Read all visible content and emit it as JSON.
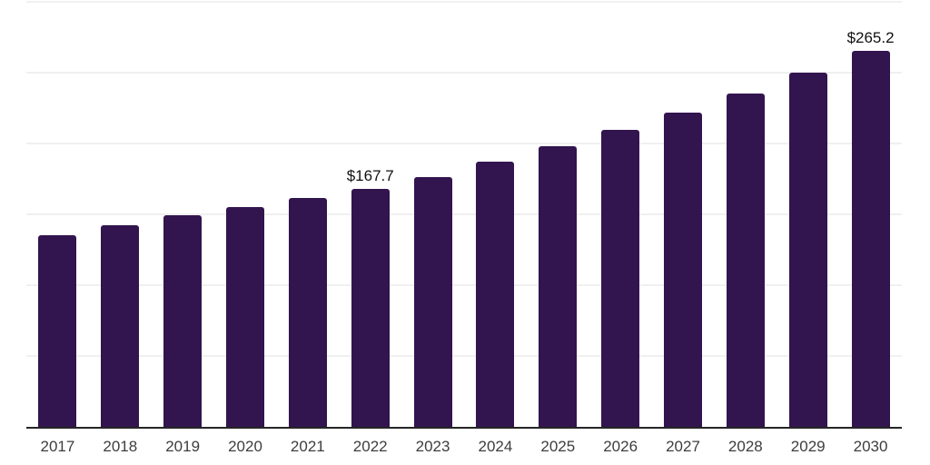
{
  "chart_data": {
    "type": "bar",
    "categories": [
      "2017",
      "2018",
      "2019",
      "2020",
      "2021",
      "2022",
      "2023",
      "2024",
      "2025",
      "2026",
      "2027",
      "2028",
      "2029",
      "2030"
    ],
    "values": [
      135.4,
      142.1,
      149.2,
      155.0,
      161.3,
      167.7,
      176.2,
      187.3,
      198.1,
      209.8,
      221.5,
      235.0,
      249.9,
      265.2
    ],
    "data_labels": [
      {
        "category": "2022",
        "text": "$167.7"
      },
      {
        "category": "2030",
        "text": "$265.2"
      }
    ],
    "ylim": [
      0,
      300
    ],
    "grid_step": 50,
    "grid": true,
    "legend": false,
    "y_tick_labels_visible": false,
    "bar_color": "#32144E",
    "grid_color": "#F0F0F0",
    "axis_line_color": "#262626",
    "value_label_color": "#111111",
    "tick_label_color": "#3D3D3D",
    "background_color": "#FFFFFF"
  }
}
